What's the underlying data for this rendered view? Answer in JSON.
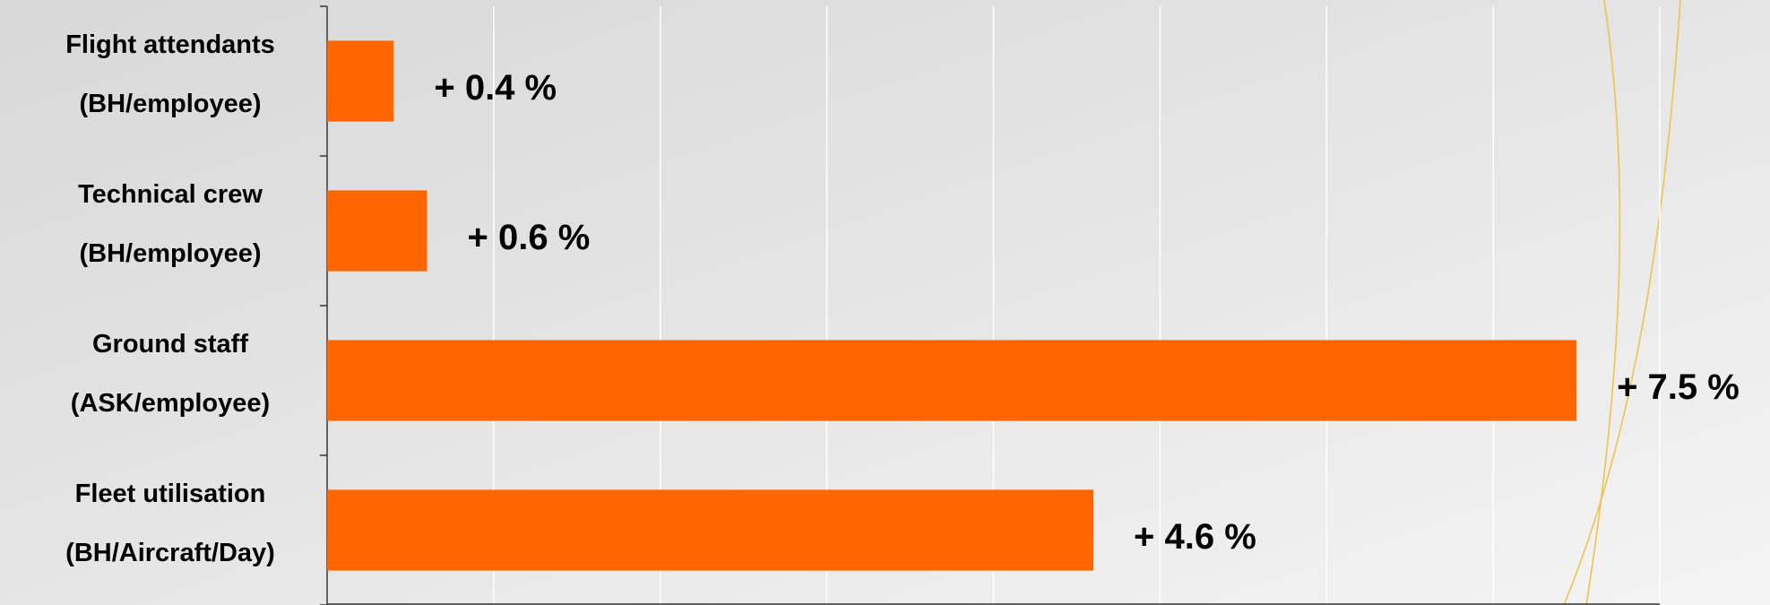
{
  "chart_data": {
    "type": "bar",
    "orientation": "horizontal",
    "categories": [
      [
        "Flight attendants",
        "(BH/employee)"
      ],
      [
        "Technical crew",
        "(BH/employee)"
      ],
      [
        "Ground staff",
        "(ASK/employee)"
      ],
      [
        "Fleet utilisation",
        "(BH/Aircraft/Day)"
      ]
    ],
    "values": [
      0.4,
      0.6,
      7.5,
      4.6
    ],
    "value_labels": [
      "+ 0.4 %",
      "+ 0.6 %",
      "+ 7.5 %",
      "+ 4.6 %"
    ],
    "color": "#ff6600",
    "xlim": [
      0,
      8
    ],
    "xticks": [
      0,
      1,
      2,
      3,
      4,
      5,
      6,
      7,
      8
    ],
    "grid": true
  }
}
